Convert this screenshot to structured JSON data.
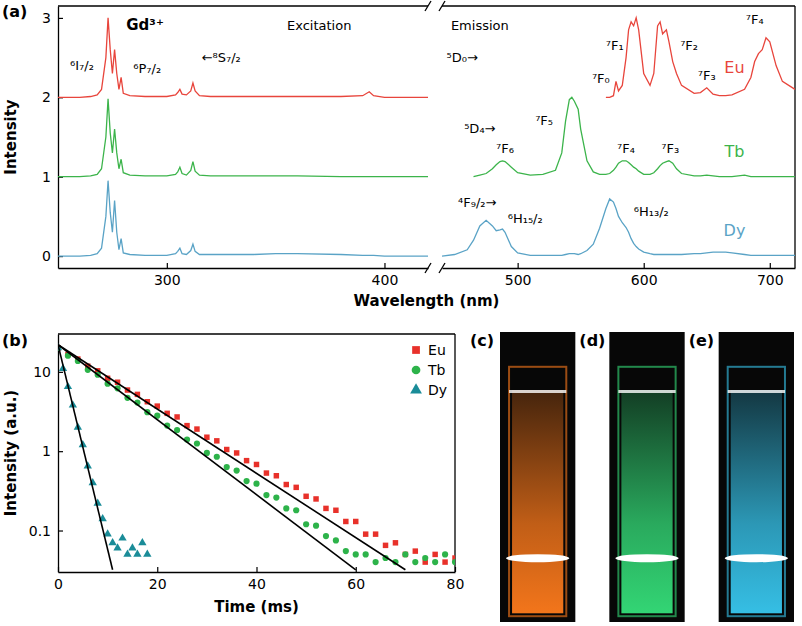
{
  "chart_data": [
    {
      "type": "line",
      "panel": "(a)",
      "xlabel": "Wavelength (nm)",
      "ylabel": "Intensity",
      "ylim": [
        -0.15,
        3.15
      ],
      "yticks": [
        0,
        1,
        2,
        3
      ],
      "x_segments": [
        {
          "xlim": [
            250,
            420
          ],
          "xticks": [
            300,
            400
          ],
          "x": [
            250,
            260,
            265,
            268,
            270,
            272,
            273,
            274,
            275,
            276,
            277,
            278,
            279,
            280,
            283,
            290,
            300,
            304,
            305,
            306,
            307,
            309,
            311,
            312,
            313,
            315,
            320,
            340,
            350,
            360,
            380,
            390,
            393,
            395,
            400,
            420
          ]
        },
        {
          "xlim": [
            440,
            720
          ],
          "xticks": [
            500,
            600,
            700
          ],
          "x": [
            440,
            450,
            460,
            465,
            470,
            475,
            480,
            483,
            486,
            488,
            490,
            495,
            500,
            510,
            520,
            530,
            535,
            538,
            541,
            543,
            545,
            548,
            550,
            555,
            560,
            565,
            570,
            573,
            576,
            578,
            580,
            583,
            586,
            588,
            590,
            592,
            594,
            596,
            600,
            605,
            608,
            611,
            613,
            615,
            618,
            620,
            623,
            626,
            630,
            640,
            645,
            650,
            655,
            660,
            665,
            670,
            680,
            685,
            688,
            691,
            694,
            697,
            700,
            705,
            710,
            720
          ]
        }
      ],
      "series": [
        {
          "name": "Eu",
          "color": "#e8453c",
          "label_position": [
            672,
            2.3
          ],
          "values": [
            [
              2.0,
              2.0,
              2.01,
              2.03,
              2.1,
              2.5,
              3.0,
              2.6,
              2.3,
              2.6,
              2.3,
              2.1,
              2.25,
              2.05,
              2.02,
              2.01,
              2.01,
              2.03,
              2.06,
              2.1,
              2.04,
              2.03,
              2.08,
              2.18,
              2.08,
              2.02,
              2.01,
              2.01,
              2.01,
              2.01,
              2.01,
              2.02,
              2.07,
              2.02,
              2.0,
              2.0
            ],
            [
              null,
              null,
              null,
              null,
              null,
              null,
              null,
              null,
              null,
              null,
              null,
              null,
              null,
              null,
              null,
              null,
              null,
              null,
              null,
              null,
              null,
              null,
              null,
              null,
              null,
              null,
              2.0,
              2.0,
              2.02,
              2.2,
              2.08,
              2.15,
              2.5,
              2.85,
              2.95,
              2.9,
              3.0,
              2.85,
              2.3,
              2.15,
              2.3,
              2.9,
              2.95,
              2.8,
              2.85,
              2.7,
              2.45,
              2.3,
              2.15,
              2.05,
              2.06,
              2.12,
              2.04,
              2.02,
              2.02,
              2.03,
              2.1,
              2.25,
              2.45,
              2.55,
              2.6,
              2.75,
              2.7,
              2.4,
              2.2,
              2.1
            ]
          ]
        },
        {
          "name": "Tb",
          "color": "#3cb44b",
          "label_position": [
            672,
            1.25
          ],
          "values": [
            [
              1.0,
              1.0,
              1.01,
              1.03,
              1.1,
              1.5,
              1.98,
              1.55,
              1.3,
              1.6,
              1.3,
              1.1,
              1.22,
              1.05,
              1.02,
              1.01,
              1.01,
              1.03,
              1.06,
              1.12,
              1.04,
              1.02,
              1.08,
              1.19,
              1.07,
              1.02,
              1.01,
              1.01,
              1.01,
              1.01,
              1.0,
              1.0,
              1.0,
              1.0,
              1.0,
              1.0
            ],
            [
              null,
              null,
              null,
              1.0,
              1.02,
              1.04,
              1.1,
              1.15,
              1.19,
              1.2,
              1.19,
              1.12,
              1.05,
              1.02,
              1.03,
              1.08,
              1.3,
              1.7,
              1.97,
              2.0,
              1.95,
              1.85,
              1.6,
              1.2,
              1.06,
              1.03,
              1.03,
              1.04,
              1.08,
              1.12,
              1.17,
              1.2,
              1.2,
              1.18,
              1.15,
              1.12,
              1.1,
              1.07,
              1.03,
              1.03,
              1.05,
              1.1,
              1.14,
              1.17,
              1.19,
              1.2,
              1.17,
              1.1,
              1.04,
              1.01,
              1.01,
              1.02,
              1.01,
              1.0,
              1.0,
              1.0,
              1.02,
              1.0,
              1.0,
              1.0,
              1.0,
              1.0,
              1.0,
              1.0,
              1.0,
              1.0
            ]
          ]
        },
        {
          "name": "Dy",
          "color": "#5aa3c6",
          "label_position": [
            672,
            0.25
          ],
          "values": [
            [
              0.0,
              0.0,
              0.01,
              0.03,
              0.1,
              0.5,
              0.95,
              0.55,
              0.3,
              0.7,
              0.3,
              0.08,
              0.22,
              0.04,
              0.02,
              0.01,
              0.01,
              0.03,
              0.06,
              0.1,
              0.03,
              0.02,
              0.07,
              0.15,
              0.06,
              0.02,
              0.02,
              0.02,
              0.03,
              0.03,
              0.02,
              0.01,
              0.01,
              0.01,
              0.0,
              0.0
            ],
            [
              0.0,
              0.02,
              0.08,
              0.2,
              0.38,
              0.45,
              0.38,
              0.32,
              0.33,
              0.34,
              0.3,
              0.12,
              0.04,
              0.01,
              0.01,
              0.01,
              0.01,
              0.02,
              0.03,
              0.03,
              0.03,
              0.02,
              0.03,
              0.07,
              0.15,
              0.35,
              0.6,
              0.72,
              0.68,
              0.6,
              0.5,
              0.42,
              0.36,
              0.3,
              0.22,
              0.16,
              0.12,
              0.09,
              0.05,
              0.03,
              0.02,
              0.02,
              0.02,
              0.02,
              0.02,
              0.02,
              0.02,
              0.02,
              0.02,
              0.03,
              0.03,
              0.04,
              0.05,
              0.05,
              0.05,
              0.04,
              0.02,
              0.01,
              0.01,
              0.01,
              0.01,
              0.01,
              0.01,
              0.01,
              0.01,
              0.01
            ]
          ]
        }
      ],
      "annotations": [
        {
          "text": "Gd³⁺",
          "x": 290,
          "y": 2.85
        },
        {
          "text": "⁶I₇/₂",
          "x": 261,
          "y": 2.35
        },
        {
          "text": "⁶P₇/₂",
          "x": 291,
          "y": 2.3
        },
        {
          "text": "←⁸S₇/₂",
          "x": 325,
          "y": 2.45
        },
        {
          "text": "Excitation",
          "x": 370,
          "y": 2.85
        },
        {
          "text": "Emission",
          "x": 470,
          "y": 2.85
        },
        {
          "text": "⁵D₀→",
          "x": 456,
          "y": 2.45
        },
        {
          "text": "⁷F₀",
          "x": 566,
          "y": 2.18
        },
        {
          "text": "⁷F₁",
          "x": 577,
          "y": 2.6
        },
        {
          "text": "⁷F₂",
          "x": 636,
          "y": 2.6
        },
        {
          "text": "⁷F₃",
          "x": 650,
          "y": 2.22
        },
        {
          "text": "⁷F₄",
          "x": 688,
          "y": 2.92
        },
        {
          "text": "⁵D₄→",
          "x": 470,
          "y": 1.55
        },
        {
          "text": "⁷F₆",
          "x": 490,
          "y": 1.3
        },
        {
          "text": "⁷F₅",
          "x": 521,
          "y": 1.65
        },
        {
          "text": "⁷F₄",
          "x": 586,
          "y": 1.3
        },
        {
          "text": "⁷F₃",
          "x": 621,
          "y": 1.3
        },
        {
          "text": "⁴F₉/₂→",
          "x": 468,
          "y": 0.62
        },
        {
          "text": "⁶H₁₅/₂",
          "x": 506,
          "y": 0.42
        },
        {
          "text": "⁶H₁₃/₂",
          "x": 606,
          "y": 0.5
        }
      ]
    },
    {
      "type": "scatter",
      "panel": "(b)",
      "xlabel": "Time (ms)",
      "ylabel": "Intensity (a.u.)",
      "xlim": [
        0,
        80
      ],
      "xticks": [
        0,
        20,
        40,
        60,
        80
      ],
      "ylim": [
        0.03,
        30
      ],
      "yticks": [
        0.1,
        1,
        10
      ],
      "log": "y",
      "legend": "upper right",
      "series": [
        {
          "name": "Eu",
          "color": "#e8312a",
          "marker": "square",
          "x": [
            0,
            2,
            4,
            6,
            8,
            10,
            12,
            14,
            16,
            18,
            20,
            22,
            24,
            26,
            28,
            30,
            32,
            34,
            36,
            38,
            40,
            42,
            44,
            46,
            48,
            50,
            52,
            54,
            56,
            58,
            60,
            62,
            64,
            66,
            68,
            70,
            72,
            74,
            76,
            78,
            80
          ],
          "values": [
            20,
            16.5,
            14.5,
            11.8,
            10.3,
            8.3,
            7.4,
            5.9,
            5.2,
            4.2,
            3.7,
            3.0,
            2.7,
            2.1,
            1.9,
            1.5,
            1.35,
            1.05,
            0.95,
            0.76,
            0.68,
            0.53,
            0.49,
            0.38,
            0.35,
            0.27,
            0.25,
            0.19,
            0.18,
            0.13,
            0.13,
            0.09,
            0.09,
            0.065,
            0.07,
            0.05,
            0.055,
            0.04,
            0.05,
            0.04,
            0.045
          ]
        },
        {
          "name": "Tb",
          "color": "#2db34a",
          "marker": "circle",
          "x": [
            0,
            2,
            4,
            6,
            8,
            10,
            12,
            14,
            16,
            18,
            20,
            22,
            24,
            26,
            28,
            30,
            32,
            34,
            36,
            38,
            40,
            42,
            44,
            46,
            48,
            50,
            52,
            54,
            56,
            58,
            60,
            62,
            64,
            66,
            68,
            70,
            72,
            74,
            76,
            78,
            80
          ],
          "values": [
            20,
            16.0,
            13.7,
            10.6,
            9.2,
            7.1,
            6.2,
            4.7,
            4.1,
            3.1,
            2.8,
            2.1,
            1.85,
            1.4,
            1.25,
            0.95,
            0.85,
            0.63,
            0.57,
            0.42,
            0.39,
            0.28,
            0.26,
            0.19,
            0.18,
            0.12,
            0.115,
            0.085,
            0.075,
            0.055,
            0.05,
            0.05,
            0.04,
            0.045,
            0.04,
            0.05,
            0.04,
            0.045,
            0.04,
            0.05,
            0.04
          ]
        },
        {
          "name": "Dy",
          "color": "#1a8c98",
          "marker": "triangle",
          "x": [
            0,
            1,
            2,
            3,
            4,
            5,
            6,
            7,
            8,
            9,
            10,
            11,
            12,
            13,
            14,
            15,
            16,
            17,
            18
          ],
          "values": [
            20,
            11,
            6.5,
            3.8,
            2.0,
            1.2,
            0.65,
            0.4,
            0.22,
            0.14,
            0.09,
            0.07,
            0.06,
            0.08,
            0.05,
            0.06,
            0.05,
            0.07,
            0.05
          ]
        },
        {
          "type": "line",
          "color": "#000000",
          "x": [
            0,
            70
          ],
          "values": [
            22,
            0.032
          ]
        },
        {
          "type": "line",
          "color": "#000000",
          "x": [
            0,
            60
          ],
          "values": [
            22,
            0.032
          ]
        },
        {
          "type": "line",
          "color": "#000000",
          "x": [
            0,
            11
          ],
          "values": [
            22,
            0.032
          ]
        }
      ]
    }
  ],
  "photos": [
    {
      "label": "(c)",
      "color": "#ff7b1c"
    },
    {
      "label": "(d)",
      "color": "#35e07a"
    },
    {
      "label": "(e)",
      "color": "#38c8f0"
    }
  ]
}
